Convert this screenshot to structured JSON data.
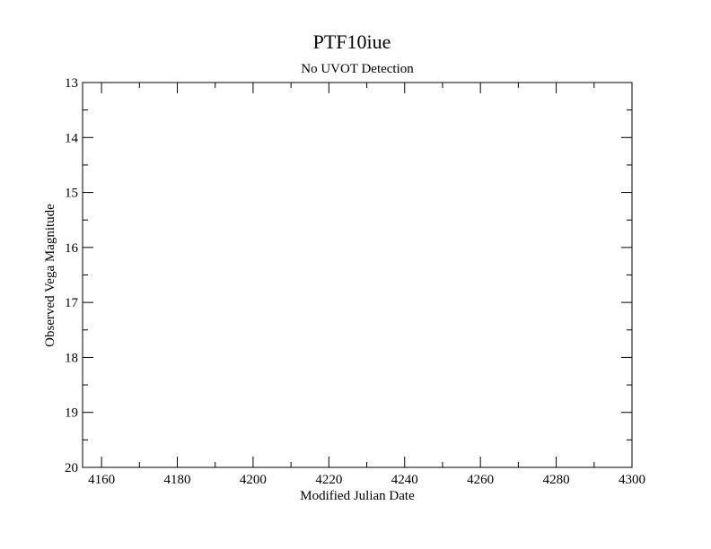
{
  "chart_data": {
    "type": "scatter",
    "title": "PTF10iue",
    "subtitle": "No UVOT Detection",
    "xlabel": "Modified Julian Date",
    "ylabel": "Observed Vega Magnitude",
    "xlim": [
      4155,
      4300
    ],
    "ylim": [
      13,
      20
    ],
    "y_inverted": true,
    "x_ticks_major": [
      4160,
      4180,
      4200,
      4220,
      4240,
      4260,
      4280,
      4300
    ],
    "x_tick_labels": [
      "4160",
      "4180",
      "4200",
      "4220",
      "4240",
      "4260",
      "4280",
      "4300"
    ],
    "x_minor_step": 10,
    "y_ticks_major": [
      13,
      14,
      15,
      16,
      17,
      18,
      19,
      20
    ],
    "y_tick_labels": [
      "13",
      "14",
      "15",
      "16",
      "17",
      "18",
      "19",
      "20"
    ],
    "y_minor_step": 0.5,
    "grid": false,
    "series": []
  }
}
